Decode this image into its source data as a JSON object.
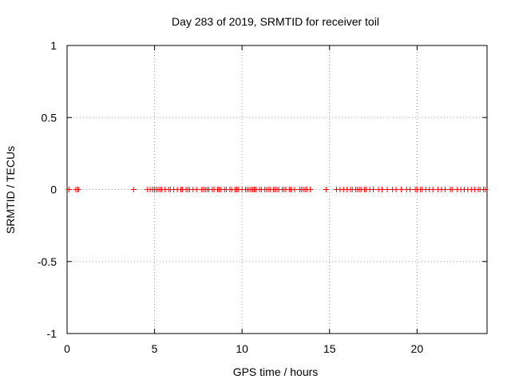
{
  "chart_data": {
    "type": "scatter",
    "title": "Day 283 of 2019, SRMTID for receiver toil",
    "xlabel": "GPS time / hours",
    "ylabel": "SRMTID / TECUs",
    "xlim": [
      0,
      24
    ],
    "ylim": [
      -1,
      1
    ],
    "xticks": [
      0,
      5,
      10,
      15,
      20
    ],
    "xtick_labels": [
      "0",
      "5",
      "10",
      "15",
      "20"
    ],
    "yticks": [
      -1,
      -0.5,
      0,
      0.5,
      1
    ],
    "ytick_labels": [
      "-1",
      "-0.5",
      "0",
      "0.5",
      "1"
    ],
    "grid": true,
    "marker": "+",
    "series": [
      {
        "name": "SRMTID",
        "color": "#ff0000",
        "x": [
          0.1,
          0.5,
          0.6,
          0.65,
          3.8,
          4.6,
          4.75,
          4.9,
          5.0,
          5.1,
          5.2,
          5.3,
          5.4,
          5.6,
          5.8,
          5.9,
          6.1,
          6.3,
          6.5,
          6.6,
          6.8,
          6.9,
          7.0,
          7.2,
          7.4,
          7.7,
          7.8,
          7.9,
          8.0,
          8.1,
          8.3,
          8.4,
          8.6,
          8.7,
          8.8,
          9.0,
          9.1,
          9.3,
          9.4,
          9.6,
          9.7,
          9.8,
          10.0,
          10.2,
          10.3,
          10.4,
          10.5,
          10.6,
          10.7,
          10.8,
          11.0,
          11.1,
          11.3,
          11.4,
          11.5,
          11.6,
          11.8,
          11.9,
          12.0,
          12.1,
          12.3,
          12.4,
          12.5,
          12.7,
          12.8,
          13.0,
          13.3,
          13.4,
          13.5,
          13.6,
          13.7,
          13.9,
          14.8,
          15.4,
          15.6,
          15.8,
          16.0,
          16.2,
          16.3,
          16.5,
          16.6,
          16.7,
          16.8,
          17.0,
          17.1,
          17.3,
          17.5,
          17.8,
          18.0,
          18.3,
          18.6,
          18.8,
          19.1,
          19.4,
          19.6,
          19.9,
          20.0,
          20.2,
          20.3,
          20.5,
          20.7,
          20.9,
          21.2,
          21.4,
          21.6,
          21.9,
          22.0,
          22.3,
          22.5,
          22.7,
          22.9,
          23.1,
          23.3,
          23.5,
          23.6,
          23.8,
          23.9
        ],
        "y": [
          0,
          0,
          0,
          0,
          0,
          0,
          0,
          0,
          0,
          0,
          0,
          0,
          0,
          0,
          0,
          0,
          0,
          0,
          0,
          0,
          0,
          0,
          0,
          0,
          0,
          0,
          0,
          0,
          0,
          0,
          0,
          0,
          0,
          0,
          0,
          0,
          0,
          0,
          0,
          0,
          0,
          0,
          0,
          0,
          0,
          0,
          0,
          0,
          0,
          0,
          0,
          0,
          0,
          0,
          0,
          0,
          0,
          0,
          0,
          0,
          0,
          0,
          0,
          0,
          0,
          0,
          0,
          0,
          0,
          0,
          0,
          0,
          0,
          0,
          0,
          0,
          0,
          0,
          0,
          0,
          0,
          0,
          0,
          0,
          0,
          0,
          0,
          0,
          0,
          0,
          0,
          0,
          0,
          0,
          0,
          0,
          0,
          0,
          0,
          0,
          0,
          0,
          0,
          0,
          0,
          0,
          0,
          0,
          0,
          0,
          0,
          0,
          0,
          0,
          0,
          0,
          0
        ]
      }
    ]
  }
}
